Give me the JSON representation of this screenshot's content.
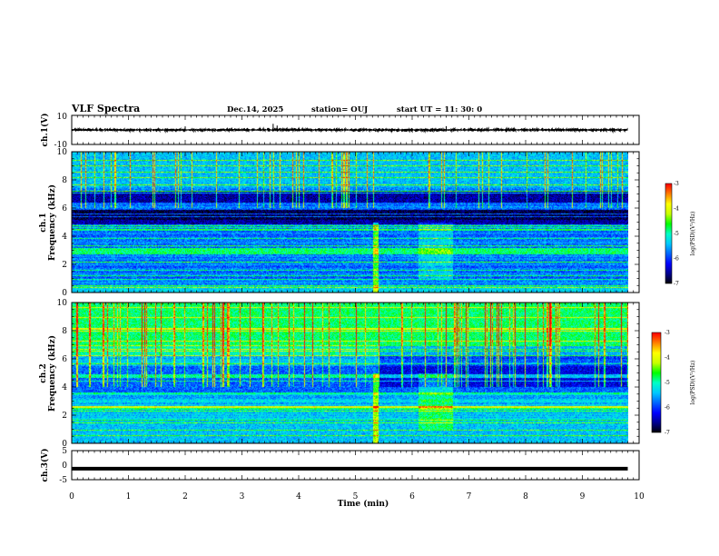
{
  "header": {
    "title": "VLF Spectra",
    "date": "Dec.14, 2025",
    "station": "station= OUJ",
    "start": "start UT =  11: 30: 0"
  },
  "chart_data": {
    "type": "heatmap",
    "panels": [
      {
        "id": "ch1-waveform",
        "type": "line",
        "ylabel": "ch.1(V)",
        "ylim": [
          -10,
          10
        ],
        "yticks": [
          "10",
          "-10"
        ],
        "series": [
          {
            "name": "ch.1 amplitude",
            "approx_range_V": [
              -1.5,
              1.5
            ]
          }
        ]
      },
      {
        "id": "ch1-spectrogram",
        "type": "heatmap",
        "ylabel": "ch.1\nFrequency (kHz)",
        "ylim": [
          0,
          10
        ],
        "yticks": [
          "0",
          "2",
          "4",
          "6",
          "8",
          "10"
        ],
        "colorbar": {
          "label": "log(PSD)(V²/Hz)",
          "range": [
            -7,
            -3
          ],
          "ticks": [
            "-3",
            "-4",
            "-5",
            "-6",
            "-7"
          ]
        }
      },
      {
        "id": "ch2-spectrogram",
        "type": "heatmap",
        "ylabel": "ch.2\nFrequency (kHz)",
        "ylim": [
          0,
          10
        ],
        "yticks": [
          "0",
          "2",
          "4",
          "6",
          "8",
          "10"
        ],
        "colorbar": {
          "label": "log(PSD)(V²/Hz)",
          "range": [
            -7,
            -3
          ],
          "ticks": [
            "-3",
            "-4",
            "-5",
            "-6",
            "-7"
          ]
        }
      },
      {
        "id": "ch3-line",
        "type": "line",
        "ylabel": "ch.3(V)",
        "ylim": [
          -5,
          5
        ],
        "yticks": [
          "5",
          "0",
          "-5"
        ],
        "series": [
          {
            "name": "ch.3",
            "value_V": -1.2
          }
        ]
      }
    ],
    "x": {
      "label": "Time (min)",
      "range": [
        0,
        10
      ],
      "ticks": [
        "0",
        "1",
        "2",
        "3",
        "4",
        "5",
        "6",
        "7",
        "8",
        "9",
        "10"
      ],
      "data_end_min": 9.8
    },
    "colormap": [
      "#000000",
      "#00008c",
      "#0000ff",
      "#0064ff",
      "#00c8ff",
      "#00ffc8",
      "#00ff00",
      "#c8ff00",
      "#ffff00",
      "#ff8000",
      "#ff0000",
      "#ffffff"
    ]
  }
}
